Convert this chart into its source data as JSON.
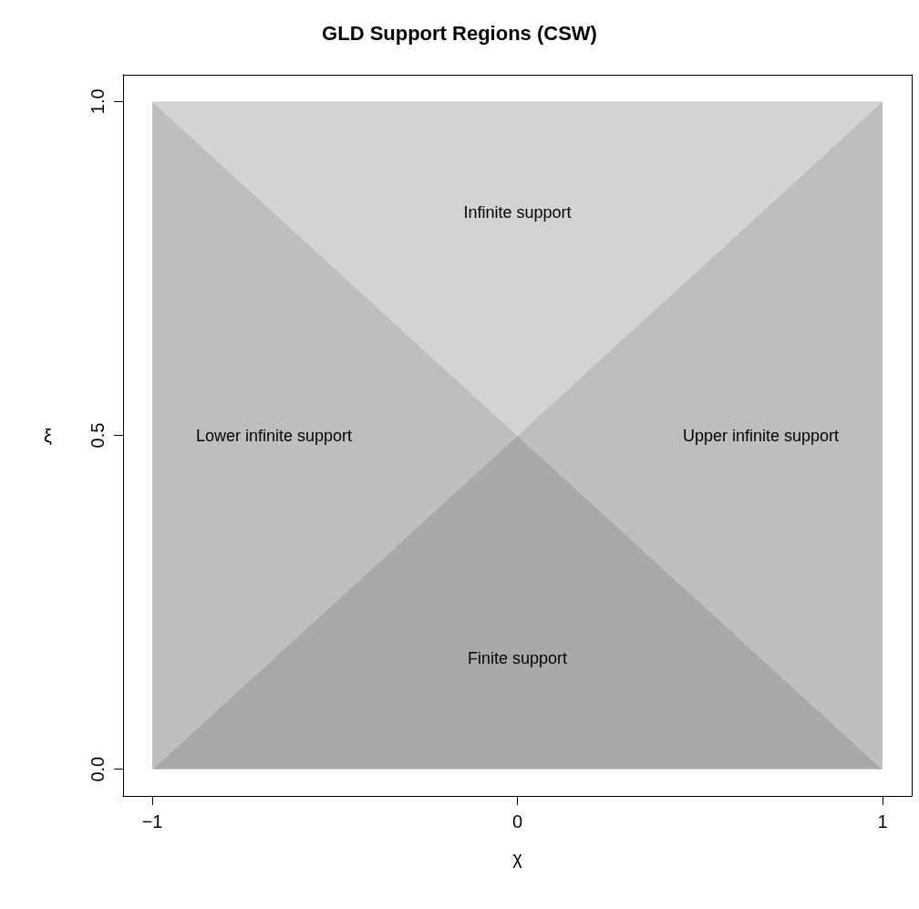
{
  "chart_data": {
    "type": "area",
    "title": "GLD Support Regions (CSW)",
    "xlabel": "χ",
    "ylabel": "ξ",
    "stacked": true,
    "x": [
      -1,
      0,
      1
    ],
    "series": [
      {
        "name": "Finite support",
        "color": "#a9a9a9",
        "values": [
          0,
          0.5,
          0
        ]
      },
      {
        "name": "Lower infinite support",
        "color": "#bebebe",
        "values": [
          1,
          0,
          null
        ]
      },
      {
        "name": "Upper infinite support",
        "color": "#bebebe",
        "values": [
          null,
          0,
          1
        ]
      },
      {
        "name": "Infinite support",
        "color": "#d3d3d3",
        "values": [
          0,
          0.5,
          0
        ]
      }
    ],
    "xlim": [
      -1.08,
      1.08
    ],
    "ylim": [
      -0.04,
      1.04
    ],
    "xticks": [
      {
        "value": -1,
        "label": "−1"
      },
      0,
      1
    ],
    "yticks": [
      {
        "value": 0,
        "label": "0.0"
      },
      0.5,
      {
        "value": 1,
        "label": "1.0"
      }
    ],
    "legend": false
  }
}
